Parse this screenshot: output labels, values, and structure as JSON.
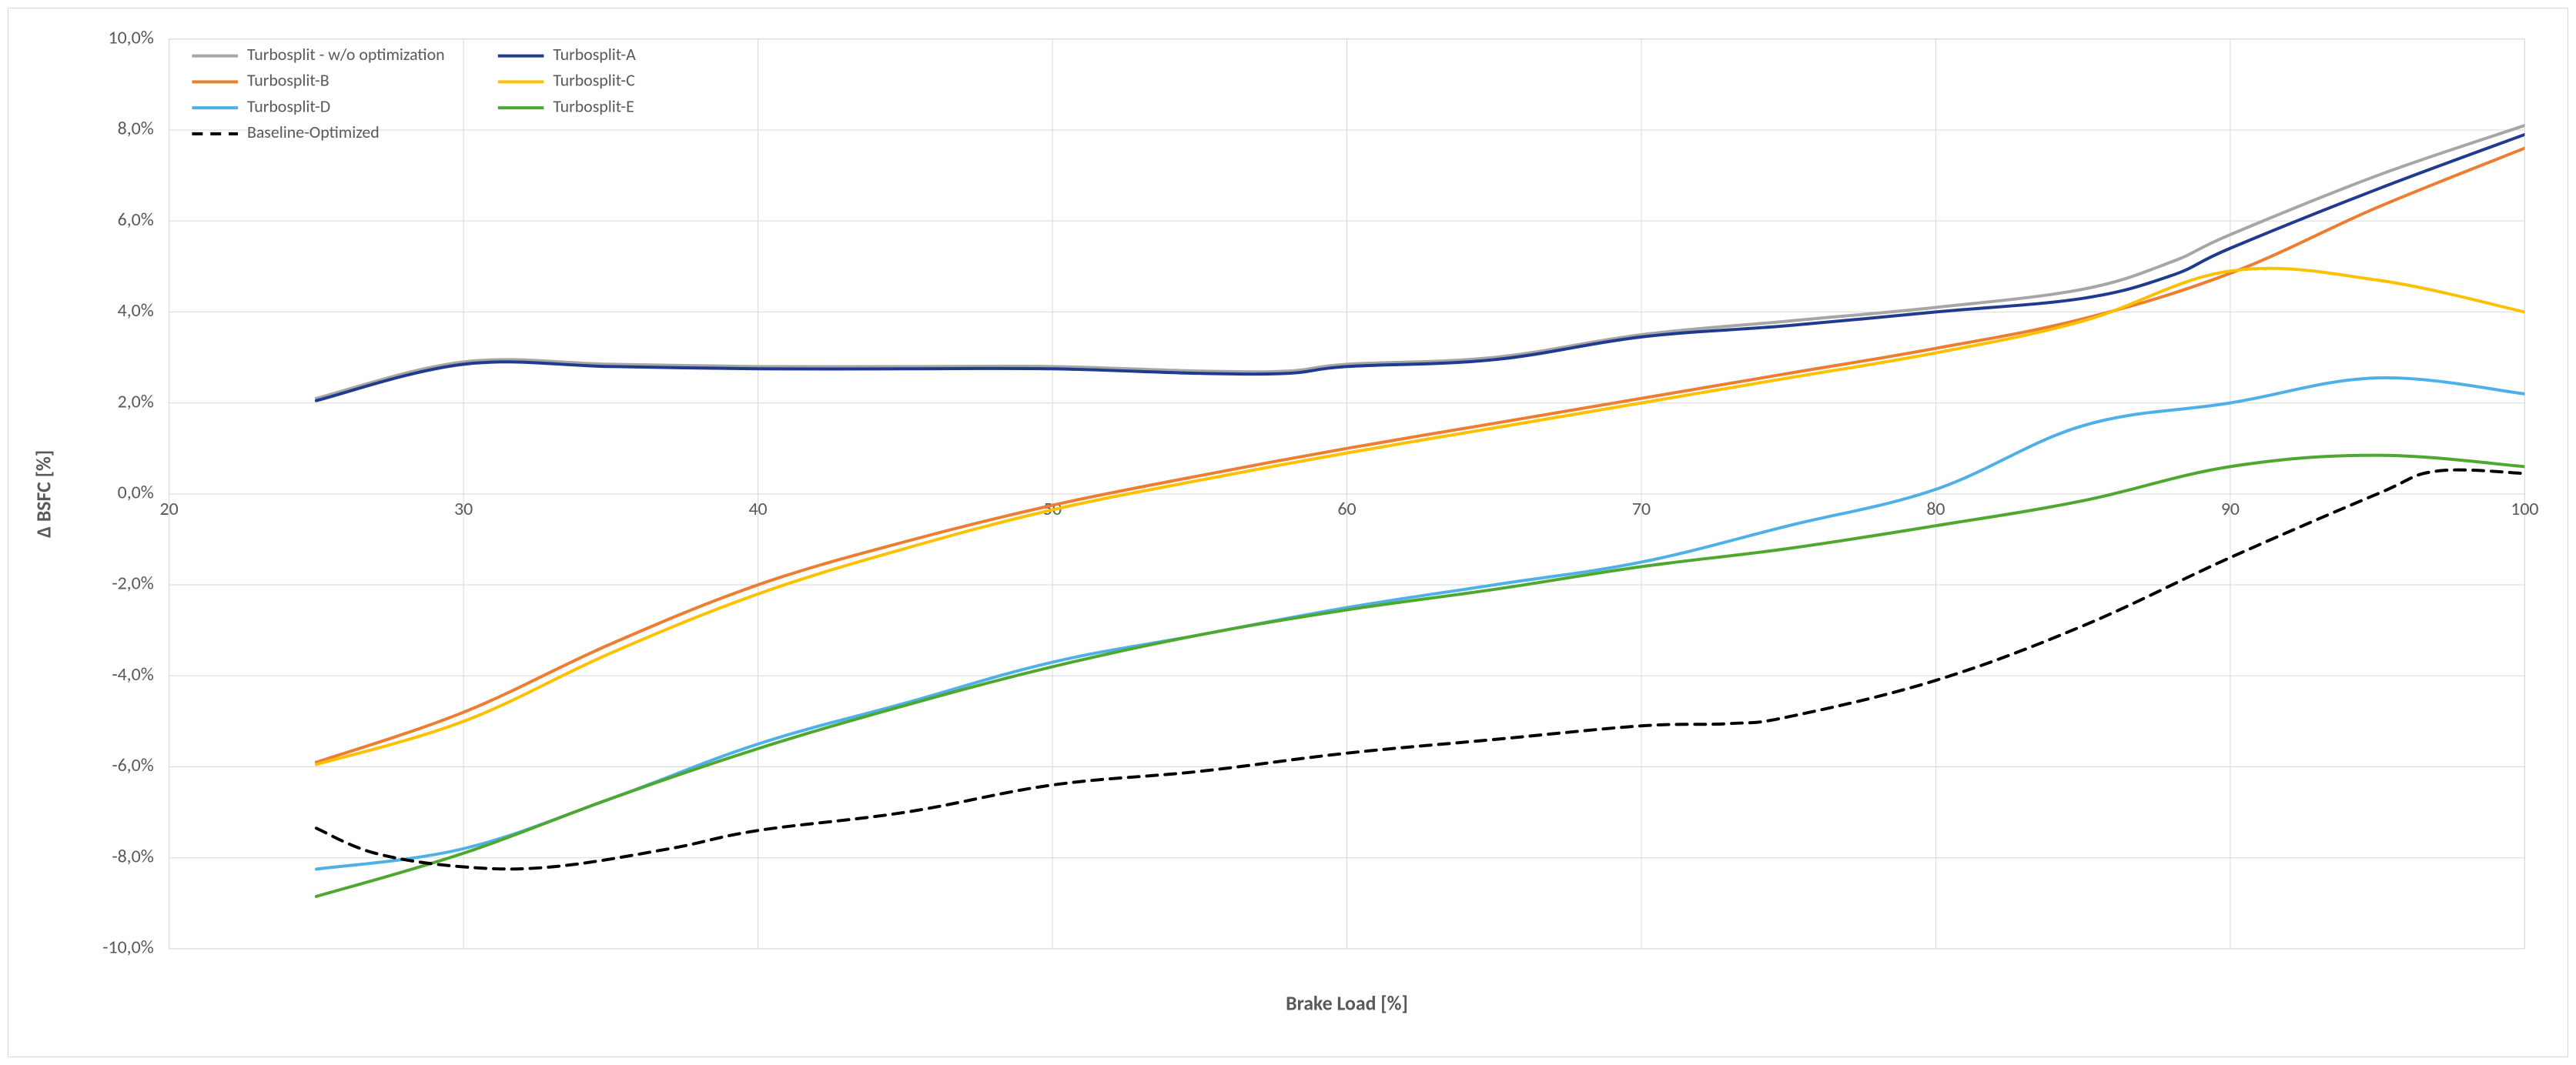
{
  "chart": {
    "type": "line",
    "background_color": "#ffffff",
    "plot_border_color": "#d9d9d9",
    "grid_color": "#d9d9d9",
    "xlabel": "Brake Load [%]",
    "ylabel": "Δ BSFC [%]",
    "label_fontsize": 26,
    "tick_fontsize": 24,
    "legend_fontsize": 22,
    "tick_color": "#595959",
    "label_color": "#595959",
    "xlim": [
      20,
      100
    ],
    "xtick_step": 10,
    "xticks": [
      20,
      30,
      40,
      50,
      60,
      70,
      80,
      90,
      100
    ],
    "xtick_labels": [
      "20",
      "30",
      "40",
      "50",
      "60",
      "70",
      "80",
      "90",
      "100"
    ],
    "ylim": [
      -10,
      10
    ],
    "ytick_step": 2,
    "yticks": [
      -10,
      -8,
      -6,
      -4,
      -2,
      0,
      2,
      4,
      6,
      8,
      10
    ],
    "ytick_labels": [
      "-10,0%",
      "-8,0%",
      "-6,0%",
      "-4,0%",
      "-2,0%",
      "0,0%",
      "2,0%",
      "4,0%",
      "6,0%",
      "8,0%",
      "10,0%"
    ],
    "line_width": 4,
    "legend": {
      "columns": 2,
      "swatch_length": 60,
      "items": [
        "Turbosplit - w/o optimization",
        "Turbosplit-A",
        "Turbosplit-B",
        "Turbosplit-C",
        "Turbosplit-D",
        "Turbosplit-E",
        "Baseline-Optimized"
      ]
    },
    "series": [
      {
        "name": "Turbosplit - w/o optimization",
        "color": "#a6a6a6",
        "dash": null,
        "x": [
          25,
          30,
          35,
          40,
          45,
          50,
          55,
          58,
          60,
          65,
          70,
          75,
          80,
          85,
          88,
          90,
          95,
          100
        ],
        "y": [
          2.1,
          2.9,
          2.85,
          2.8,
          2.8,
          2.8,
          2.7,
          2.7,
          2.85,
          3.0,
          3.5,
          3.8,
          4.1,
          4.5,
          5.1,
          5.7,
          7.0,
          8.1
        ]
      },
      {
        "name": "Turbosplit-A",
        "color": "#1f3b8f",
        "dash": null,
        "x": [
          25,
          30,
          35,
          40,
          45,
          50,
          55,
          58,
          60,
          65,
          70,
          75,
          80,
          85,
          88,
          90,
          95,
          100
        ],
        "y": [
          2.05,
          2.85,
          2.8,
          2.75,
          2.75,
          2.75,
          2.65,
          2.65,
          2.8,
          2.95,
          3.45,
          3.7,
          4.0,
          4.3,
          4.8,
          5.4,
          6.7,
          7.9
        ]
      },
      {
        "name": "Turbosplit-B",
        "color": "#ed7d31",
        "dash": null,
        "x": [
          25,
          30,
          35,
          40,
          45,
          50,
          55,
          60,
          65,
          70,
          75,
          80,
          85,
          90,
          95,
          100
        ],
        "y": [
          -5.9,
          -4.8,
          -3.3,
          -2.0,
          -1.05,
          -0.25,
          0.4,
          1.0,
          1.55,
          2.1,
          2.65,
          3.2,
          3.85,
          4.85,
          6.3,
          7.6
        ]
      },
      {
        "name": "Turbosplit-C",
        "color": "#ffc000",
        "dash": null,
        "x": [
          25,
          30,
          35,
          40,
          45,
          50,
          55,
          60,
          65,
          70,
          75,
          80,
          85,
          90,
          95,
          100
        ],
        "y": [
          -5.95,
          -5.0,
          -3.5,
          -2.2,
          -1.2,
          -0.35,
          0.3,
          0.9,
          1.45,
          2.0,
          2.55,
          3.1,
          3.8,
          4.9,
          4.7,
          4.0
        ]
      },
      {
        "name": "Turbosplit-D",
        "color": "#4fb0e8",
        "dash": null,
        "x": [
          25,
          30,
          35,
          40,
          45,
          50,
          55,
          60,
          65,
          70,
          75,
          80,
          85,
          90,
          95,
          100
        ],
        "y": [
          -8.25,
          -7.8,
          -6.7,
          -5.5,
          -4.6,
          -3.7,
          -3.1,
          -2.5,
          -2.0,
          -1.5,
          -0.7,
          0.1,
          1.5,
          2.0,
          2.55,
          2.2
        ]
      },
      {
        "name": "Turbosplit-E",
        "color": "#4ea72e",
        "dash": null,
        "x": [
          25,
          30,
          35,
          40,
          45,
          50,
          55,
          60,
          65,
          70,
          75,
          80,
          85,
          90,
          95,
          100
        ],
        "y": [
          -8.85,
          -7.9,
          -6.7,
          -5.6,
          -4.65,
          -3.8,
          -3.1,
          -2.55,
          -2.1,
          -1.6,
          -1.2,
          -0.7,
          -0.15,
          0.6,
          0.85,
          0.6
        ]
      },
      {
        "name": "Baseline-Optimized",
        "color": "#000000",
        "dash": "14,10",
        "x": [
          25,
          27,
          30,
          33,
          37,
          40,
          45,
          50,
          55,
          60,
          65,
          70,
          73,
          75,
          80,
          85,
          90,
          95,
          97,
          100
        ],
        "y": [
          -7.35,
          -7.9,
          -8.2,
          -8.2,
          -7.8,
          -7.4,
          -7.0,
          -6.4,
          -6.1,
          -5.7,
          -5.4,
          -5.1,
          -5.05,
          -4.9,
          -4.1,
          -2.9,
          -1.4,
          0.0,
          0.5,
          0.45
        ]
      }
    ]
  }
}
